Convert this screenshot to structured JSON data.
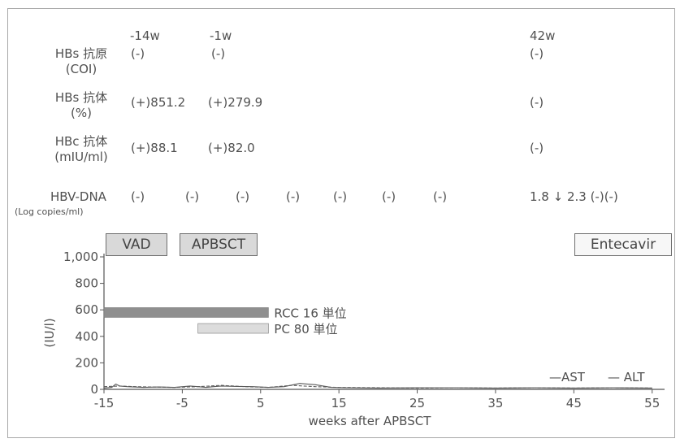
{
  "table": {
    "column_headers": [
      "-14w",
      "-1w",
      "42w"
    ],
    "rows": [
      {
        "name": "HBs 抗原",
        "unit": "(COI)",
        "values": [
          "(-)",
          "(-)",
          "(-)"
        ]
      },
      {
        "name": "HBs 抗体",
        "unit": "(%)",
        "values": [
          "(+)851.2",
          "(+)279.9",
          "(-)"
        ]
      },
      {
        "name": "HBc 抗体",
        "unit": "(mIU/ml)",
        "values": [
          "(+)88.1",
          "(+)82.0",
          "(-)"
        ]
      }
    ],
    "dna_row": {
      "name": "HBV-DNA",
      "unit": "(Log copies/ml)",
      "values": [
        "(-)",
        "(-)",
        "(-)",
        "(-)",
        "(-)",
        "(-)",
        "(-)"
      ],
      "late_value": "1.8 ↓ 2.3 (-)(-)"
    }
  },
  "treatments": [
    "VAD",
    "APBSCT",
    "Entecavir"
  ],
  "chart_data": {
    "type": "line",
    "xlabel": "weeks after APBSCT",
    "ylabel": "(IU/l)",
    "xlim": [
      -15,
      57
    ],
    "ylim": [
      0,
      1000
    ],
    "x_ticks": [
      "-15",
      "-5",
      "5",
      "15",
      "25",
      "35",
      "45",
      "55"
    ],
    "y_ticks": [
      "0",
      "200",
      "400",
      "600",
      "800",
      "1,000"
    ],
    "series": [
      {
        "name": "AST",
        "style": "solid",
        "x": [
          -15,
          -14,
          -13.5,
          -13,
          -12,
          -10,
          -8,
          -6,
          -4,
          -3,
          -2,
          -1,
          0,
          2,
          4,
          6,
          8,
          10,
          12,
          14,
          16,
          20,
          25,
          30,
          35,
          40,
          45,
          50,
          55
        ],
        "y": [
          10,
          15,
          40,
          25,
          20,
          15,
          18,
          15,
          25,
          20,
          15,
          20,
          25,
          22,
          20,
          15,
          20,
          45,
          35,
          15,
          12,
          10,
          12,
          12,
          10,
          12,
          10,
          12,
          10
        ]
      },
      {
        "name": "ALT",
        "style": "dashed",
        "x": [
          -15,
          -13,
          -11,
          -9,
          -6,
          -3,
          0,
          3,
          6,
          9,
          12,
          15,
          20,
          25,
          30,
          35,
          40,
          45,
          50,
          55
        ],
        "y": [
          20,
          25,
          20,
          18,
          15,
          20,
          30,
          20,
          15,
          30,
          20,
          15,
          12,
          10,
          12,
          10,
          12,
          10,
          12,
          10
        ]
      }
    ],
    "bars": [
      {
        "label": "RCC 16 単位",
        "value": 580,
        "x": [
          -15,
          6
        ],
        "color": "#8f8f8f"
      },
      {
        "label": "PC 80 単位",
        "value": 460,
        "x": [
          -3,
          6
        ],
        "color": "#dcdcdc"
      }
    ],
    "legend": [
      "—AST",
      "— ALT"
    ]
  },
  "colors": {
    "line": "#5a5a5a",
    "axis": "#555555",
    "frame": "#a8a8a8"
  }
}
